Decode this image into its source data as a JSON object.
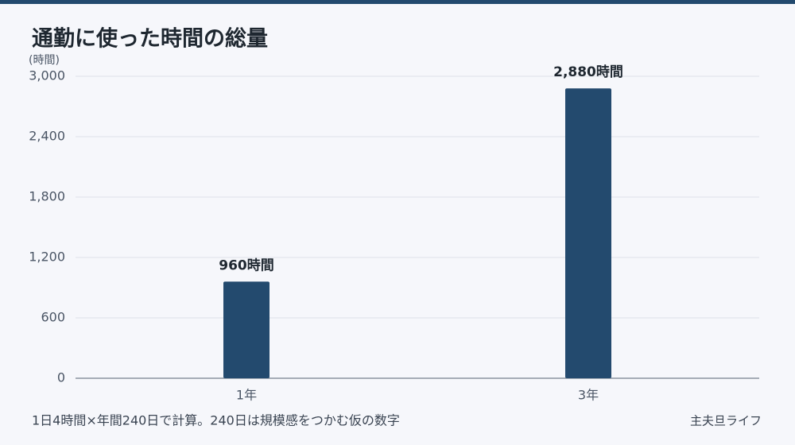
{
  "chart_data": {
    "type": "bar",
    "title": "通勤に使った時間の総量",
    "y_axis_label": "(時間)",
    "categories": [
      "1年",
      "3年"
    ],
    "values": [
      960,
      2880
    ],
    "value_labels": [
      "960時間",
      "2,880時間"
    ],
    "color": "#234a6e",
    "ylim": [
      0,
      3000
    ],
    "yticks": [
      0,
      600,
      {
        "value": 1200,
        "label": "1,200"
      },
      {
        "value": 1800,
        "label": "1,800"
      },
      {
        "value": 2400,
        "label": "2,400"
      },
      {
        "value": 3000,
        "label": "3,000"
      }
    ],
    "grid": true,
    "note": "1日4時間×年間240日で計算。240日は規模感をつかむ仮の数字",
    "source": "主夫旦ライフ"
  }
}
